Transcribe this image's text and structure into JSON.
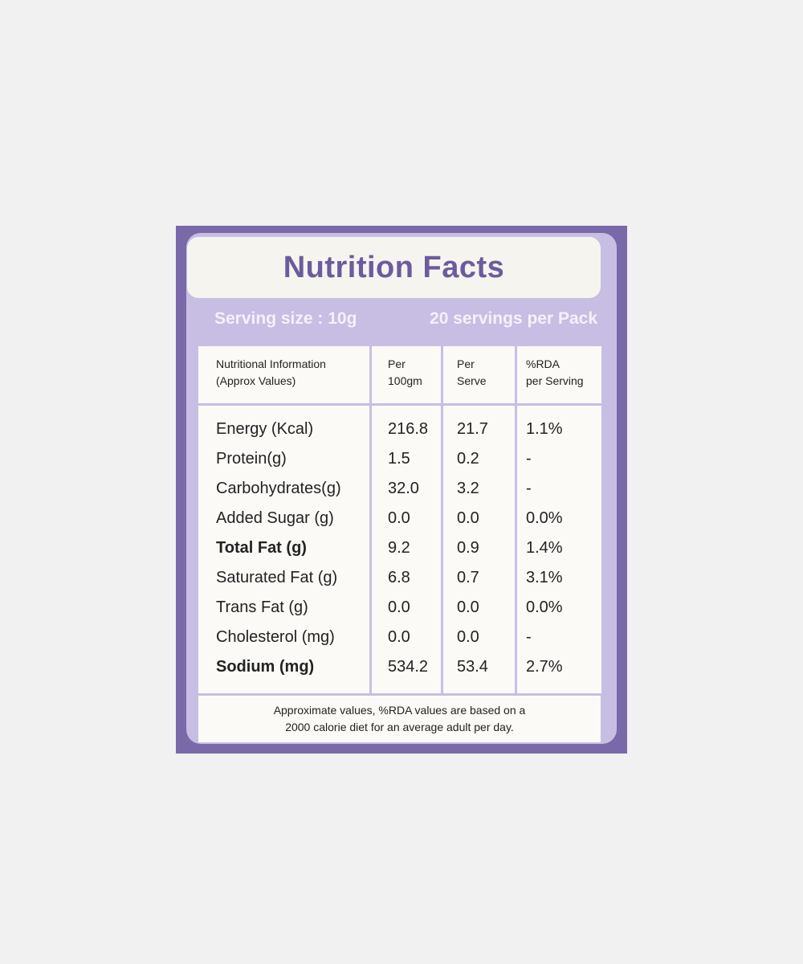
{
  "header": {
    "title": "Nutrition Facts",
    "serving_size": "Serving size : 10g",
    "servings_per_pack": "20 servings per Pack"
  },
  "table": {
    "columns": [
      "Nutritional Information\n(Approx Values)",
      "Per\n100gm",
      "Per\nServe",
      "%RDA\nper Serving"
    ],
    "rows": [
      [
        "Energy (Kcal)",
        "216.8",
        "21.7",
        "1.1%"
      ],
      [
        "Protein(g)",
        "1.5",
        "0.2",
        "-"
      ],
      [
        "Carbohydrates(g)",
        "32.0",
        "3.2",
        "-"
      ],
      [
        "Added Sugar (g)",
        "0.0",
        "0.0",
        "0.0%"
      ],
      [
        "Total Fat (g)",
        "9.2",
        "0.9",
        "1.4%"
      ],
      [
        "Saturated Fat (g)",
        "6.8",
        "0.7",
        "3.1%"
      ],
      [
        "Trans Fat (g)",
        "0.0",
        "0.0",
        "0.0%"
      ],
      [
        "Cholesterol (mg)",
        "0.0",
        "0.0",
        "-"
      ],
      [
        "Sodium (mg)",
        "534.2",
        "53.4",
        "2.7%"
      ]
    ]
  },
  "footnote": "Approximate values, %RDA values are based on a\n2000 calorie diet for an average adult per day."
}
